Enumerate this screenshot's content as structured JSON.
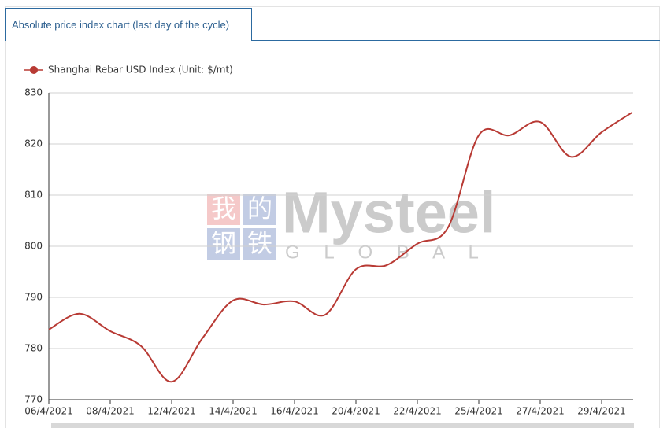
{
  "tab_label": "Absolute price index chart (last day of the cycle)",
  "watermark": {
    "chinese": [
      "我",
      "的",
      "钢",
      "铁"
    ],
    "brand": "Mysteel",
    "sub": "G L O B A L"
  },
  "chart_data": {
    "type": "line",
    "categories": [
      "06/4/2021",
      null,
      "08/4/2021",
      null,
      "12/4/2021",
      null,
      "14/4/2021",
      null,
      "16/4/2021",
      null,
      "20/4/2021",
      null,
      "22/4/2021",
      null,
      "25/4/2021",
      null,
      "27/4/2021",
      null,
      "29/4/2021",
      null
    ],
    "series": [
      {
        "name": "Shanghai Rebar USD Index (Unit: $/mt)",
        "color": "#b83a34",
        "values": [
          783.7,
          786.8,
          783.4,
          780.5,
          773.5,
          782.0,
          789.4,
          788.6,
          789.2,
          786.6,
          795.5,
          796.3,
          800.5,
          803.7,
          821.7,
          821.7,
          824.3,
          817.5,
          822.3,
          826.2
        ]
      }
    ],
    "ylim": [
      770,
      830
    ],
    "yticks": [
      770,
      780,
      790,
      800,
      810,
      820,
      830
    ],
    "grid": true,
    "legend": "top-left",
    "smooth": true
  }
}
